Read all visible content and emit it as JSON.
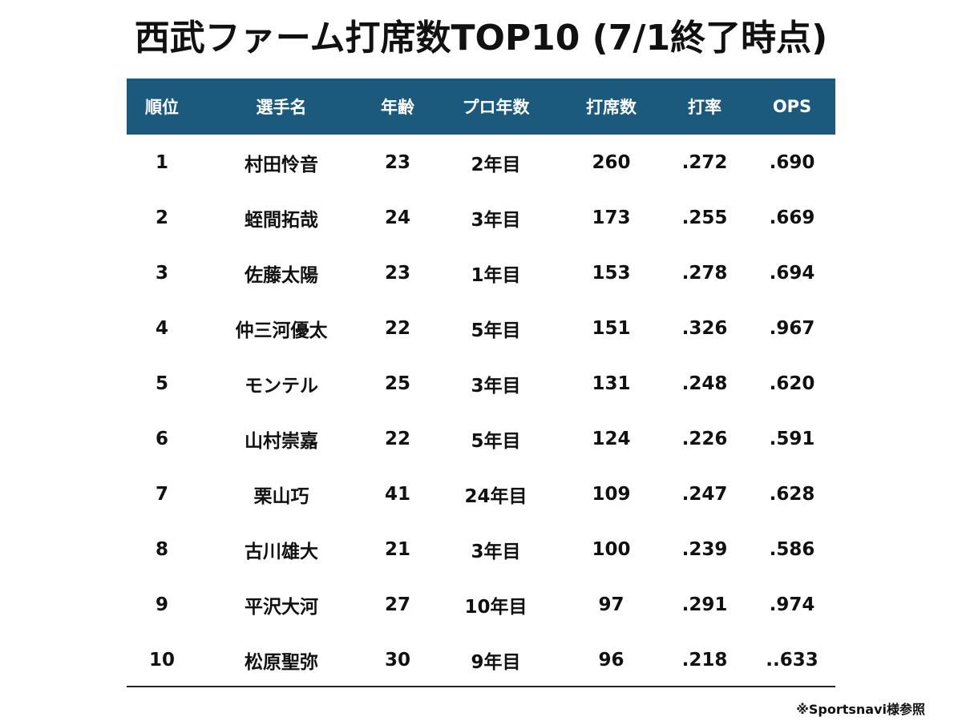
{
  "title": "西武ファーム打席数TOP10 (7/1終了時点)",
  "headers": [
    "順位",
    "選手名",
    "年齢",
    "プロ年数",
    "打席数",
    "打率",
    "OPS"
  ],
  "rows": [
    [
      "1",
      "村田怜音",
      "23",
      "2年目",
      "260",
      ".272",
      ".690"
    ],
    [
      "2",
      "蛭間拓哉",
      "24",
      "3年目",
      "173",
      ".255",
      ".669"
    ],
    [
      "3",
      "佐藤太陽",
      "23",
      "1年目",
      "153",
      ".278",
      ".694"
    ],
    [
      "4",
      "仲三河優太",
      "22",
      "5年目",
      "151",
      ".326",
      ".967"
    ],
    [
      "5",
      "モンテル",
      "25",
      "3年目",
      "131",
      ".248",
      ".620"
    ],
    [
      "6",
      "山村崇嘉",
      "22",
      "5年目",
      "124",
      ".226",
      ".591"
    ],
    [
      "7",
      "栗山巧",
      "41",
      "24年目",
      "109",
      ".247",
      ".628"
    ],
    [
      "8",
      "古川雄大",
      "21",
      "3年目",
      "100",
      ".239",
      ".586"
    ],
    [
      "9",
      "平沢大河",
      "27",
      "10年目",
      "97",
      ".291",
      ".974"
    ],
    [
      "10",
      "松原聖弥",
      "30",
      "9年目",
      "96",
      ".218",
      "..633"
    ]
  ],
  "note": "※Sportsnavi様参照",
  "colors": {
    "header_bg": "#1b5a7d",
    "header_text": "#ffffff",
    "body_text": "#111111"
  }
}
